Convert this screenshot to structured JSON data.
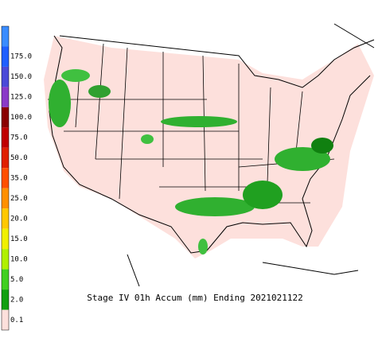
{
  "title": "Stage IV 01h Accum (mm) Ending 2021021122",
  "legend": {
    "top_color": "#3a8cff",
    "levels": [
      {
        "label": "175.0",
        "color": "#1f5fff"
      },
      {
        "label": "150.0",
        "color": "#4a4ad8"
      },
      {
        "label": "125.0",
        "color": "#8a3ac8"
      },
      {
        "label": "100.0",
        "color": "#8a0000"
      },
      {
        "label": "75.0",
        "color": "#c00000"
      },
      {
        "label": "50.0",
        "color": "#e02000"
      },
      {
        "label": "35.0",
        "color": "#ff5000"
      },
      {
        "label": "25.0",
        "color": "#ff9000"
      },
      {
        "label": "20.0",
        "color": "#ffc800"
      },
      {
        "label": "15.0",
        "color": "#f0f000"
      },
      {
        "label": "10.0",
        "color": "#b0f000"
      },
      {
        "label": "5.0",
        "color": "#40d020"
      },
      {
        "label": "2.0",
        "color": "#10a010"
      },
      {
        "label": "0.1",
        "color": "#fde0dc"
      }
    ]
  }
}
